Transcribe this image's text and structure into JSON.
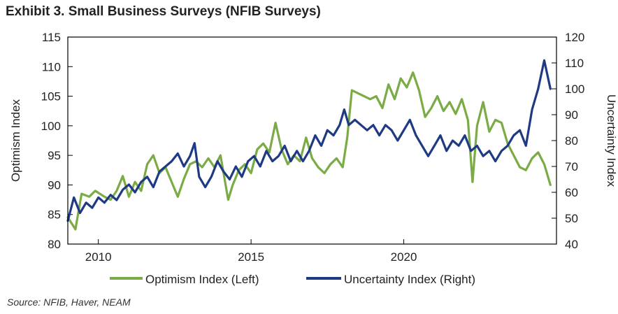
{
  "title": "Exhibit 3. Small Business Surveys (NFIB Surveys)",
  "source": "Source: NFIB, Haver, NEAM",
  "chart_data": {
    "type": "line",
    "title": "Exhibit 3. Small Business Surveys (NFIB Surveys)",
    "xlabel": "",
    "ylabel_left": "Optimism Index",
    "ylabel_right": "Uncertainty Index",
    "xlim": [
      2009.0,
      2025.0
    ],
    "ylim_left": [
      80,
      115
    ],
    "ylim_right": [
      40,
      120
    ],
    "yticks_left": [
      80,
      85,
      90,
      95,
      100,
      105,
      110,
      115
    ],
    "yticks_right": [
      40,
      50,
      60,
      70,
      80,
      90,
      100,
      110,
      120
    ],
    "xticks": [
      {
        "value": 2010,
        "label": "2010"
      },
      {
        "value": 2015,
        "label": "2015"
      },
      {
        "value": 2020,
        "label": "2020"
      }
    ],
    "legend_position": "bottom",
    "series": [
      {
        "name": "Optimism Index (Left)",
        "axis": "left",
        "color": "#7aab44",
        "points": [
          [
            2009.0,
            84.5
          ],
          [
            2009.25,
            82.5
          ],
          [
            2009.45,
            88.5
          ],
          [
            2009.7,
            88.0
          ],
          [
            2009.9,
            89.0
          ],
          [
            2010.2,
            88.0
          ],
          [
            2010.4,
            87.5
          ],
          [
            2010.6,
            89.0
          ],
          [
            2010.8,
            91.5
          ],
          [
            2011.0,
            88.0
          ],
          [
            2011.2,
            90.5
          ],
          [
            2011.4,
            89.0
          ],
          [
            2011.6,
            93.5
          ],
          [
            2011.8,
            95.0
          ],
          [
            2012.0,
            92.0
          ],
          [
            2012.2,
            93.0
          ],
          [
            2012.4,
            90.5
          ],
          [
            2012.6,
            88.0
          ],
          [
            2012.8,
            91.0
          ],
          [
            2013.0,
            93.5
          ],
          [
            2013.2,
            94.0
          ],
          [
            2013.4,
            93.0
          ],
          [
            2013.6,
            94.5
          ],
          [
            2013.8,
            93.0
          ],
          [
            2014.0,
            95.0
          ],
          [
            2014.1,
            92.0
          ],
          [
            2014.25,
            87.5
          ],
          [
            2014.4,
            90.0
          ],
          [
            2014.6,
            92.5
          ],
          [
            2014.8,
            93.5
          ],
          [
            2015.0,
            92.0
          ],
          [
            2015.2,
            96.0
          ],
          [
            2015.4,
            97.0
          ],
          [
            2015.6,
            95.5
          ],
          [
            2015.8,
            100.5
          ],
          [
            2016.0,
            96.0
          ],
          [
            2016.2,
            93.5
          ],
          [
            2016.4,
            95.0
          ],
          [
            2016.6,
            94.0
          ],
          [
            2016.8,
            98.0
          ],
          [
            2017.0,
            94.5
          ],
          [
            2017.2,
            93.0
          ],
          [
            2017.4,
            92.0
          ],
          [
            2017.6,
            93.5
          ],
          [
            2017.8,
            94.5
          ],
          [
            2018.0,
            93.0
          ],
          [
            2018.15,
            98.0
          ],
          [
            2018.3,
            106.0
          ],
          [
            2018.5,
            105.5
          ],
          [
            2018.7,
            105.0
          ],
          [
            2018.9,
            104.5
          ],
          [
            2019.1,
            105.0
          ],
          [
            2019.3,
            103.0
          ],
          [
            2019.5,
            107.0
          ],
          [
            2019.7,
            104.5
          ],
          [
            2019.9,
            108.0
          ],
          [
            2020.1,
            106.5
          ],
          [
            2020.3,
            109.0
          ],
          [
            2020.5,
            106.0
          ],
          [
            2020.7,
            101.5
          ],
          [
            2020.9,
            103.0
          ],
          [
            2021.1,
            105.0
          ],
          [
            2021.3,
            102.5
          ],
          [
            2021.5,
            104.0
          ],
          [
            2021.7,
            102.0
          ],
          [
            2021.9,
            104.5
          ],
          [
            2022.1,
            101.0
          ],
          [
            2022.25,
            90.5
          ],
          [
            2022.4,
            100.0
          ],
          [
            2022.6,
            104.0
          ],
          [
            2022.8,
            99.0
          ],
          [
            2023.0,
            101.0
          ],
          [
            2023.2,
            100.5
          ],
          [
            2023.4,
            97.0
          ],
          [
            2023.6,
            95.0
          ],
          [
            2023.8,
            93.0
          ],
          [
            2024.0,
            92.5
          ],
          [
            2024.2,
            94.5
          ],
          [
            2024.4,
            95.5
          ],
          [
            2024.6,
            93.5
          ],
          [
            2024.8,
            90.0
          ]
        ]
      },
      {
        "name": "Uncertainty Index (Right)",
        "axis": "right",
        "color": "#1f3a85",
        "points": [
          [
            2009.0,
            49.0
          ],
          [
            2009.2,
            58.0
          ],
          [
            2009.4,
            52.0
          ],
          [
            2009.6,
            56.0
          ],
          [
            2009.8,
            54.0
          ],
          [
            2010.0,
            58.0
          ],
          [
            2010.2,
            56.0
          ],
          [
            2010.4,
            59.0
          ],
          [
            2010.6,
            57.0
          ],
          [
            2010.8,
            61.0
          ],
          [
            2011.0,
            63.0
          ],
          [
            2011.2,
            60.0
          ],
          [
            2011.4,
            64.0
          ],
          [
            2011.6,
            66.0
          ],
          [
            2011.8,
            62.0
          ],
          [
            2012.0,
            68.0
          ],
          [
            2012.2,
            70.0
          ],
          [
            2012.4,
            72.0
          ],
          [
            2012.6,
            75.0
          ],
          [
            2012.8,
            70.0
          ],
          [
            2013.0,
            74.0
          ],
          [
            2013.15,
            79.0
          ],
          [
            2013.3,
            66.0
          ],
          [
            2013.5,
            62.0
          ],
          [
            2013.7,
            66.0
          ],
          [
            2013.9,
            72.0
          ],
          [
            2014.1,
            68.0
          ],
          [
            2014.3,
            65.0
          ],
          [
            2014.5,
            70.0
          ],
          [
            2014.7,
            66.0
          ],
          [
            2014.9,
            72.0
          ],
          [
            2015.1,
            74.0
          ],
          [
            2015.3,
            70.0
          ],
          [
            2015.5,
            76.0
          ],
          [
            2015.7,
            72.0
          ],
          [
            2015.9,
            74.0
          ],
          [
            2016.1,
            78.0
          ],
          [
            2016.3,
            72.0
          ],
          [
            2016.5,
            76.0
          ],
          [
            2016.7,
            72.0
          ],
          [
            2016.9,
            76.0
          ],
          [
            2017.1,
            82.0
          ],
          [
            2017.3,
            78.0
          ],
          [
            2017.5,
            84.0
          ],
          [
            2017.7,
            82.0
          ],
          [
            2017.9,
            86.0
          ],
          [
            2018.05,
            92.0
          ],
          [
            2018.2,
            86.0
          ],
          [
            2018.4,
            88.0
          ],
          [
            2018.6,
            86.0
          ],
          [
            2018.8,
            84.0
          ],
          [
            2019.0,
            86.0
          ],
          [
            2019.2,
            82.0
          ],
          [
            2019.4,
            86.0
          ],
          [
            2019.6,
            84.0
          ],
          [
            2019.8,
            80.0
          ],
          [
            2020.0,
            84.0
          ],
          [
            2020.2,
            88.0
          ],
          [
            2020.4,
            82.0
          ],
          [
            2020.6,
            78.0
          ],
          [
            2020.8,
            74.0
          ],
          [
            2021.0,
            78.0
          ],
          [
            2021.2,
            82.0
          ],
          [
            2021.4,
            76.0
          ],
          [
            2021.6,
            80.0
          ],
          [
            2021.8,
            78.0
          ],
          [
            2022.0,
            82.0
          ],
          [
            2022.2,
            76.0
          ],
          [
            2022.4,
            78.0
          ],
          [
            2022.6,
            74.0
          ],
          [
            2022.8,
            76.0
          ],
          [
            2023.0,
            72.0
          ],
          [
            2023.2,
            76.0
          ],
          [
            2023.4,
            78.0
          ],
          [
            2023.6,
            82.0
          ],
          [
            2023.8,
            84.0
          ],
          [
            2024.0,
            78.0
          ],
          [
            2024.2,
            92.0
          ],
          [
            2024.4,
            100.0
          ],
          [
            2024.6,
            111.0
          ],
          [
            2024.8,
            100.0
          ]
        ]
      }
    ]
  }
}
